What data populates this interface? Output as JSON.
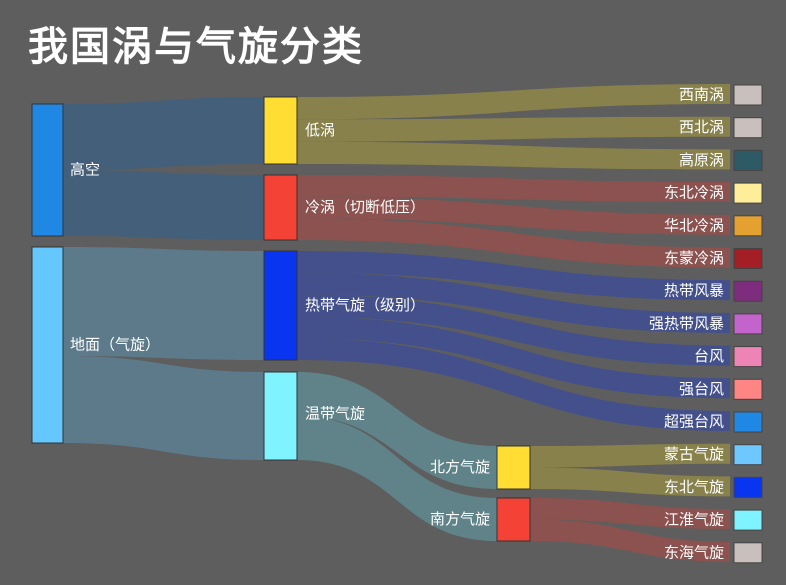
{
  "title": "我国涡与气旋分类",
  "colors": {
    "background": "#5e5e5e",
    "node_level0": "#1f88e5",
    "node_level0b": "#64c8ff",
    "flow_gaokong": "#3f5f7f",
    "flow_dimian": "#5d7f93",
    "flow_diwo": "#8f8748",
    "flow_lengwo": "#93504c",
    "flow_redai": "#3e4d93",
    "flow_wendai": "#5f8a8f"
  },
  "nodes": {
    "gaokong": {
      "label": "高空",
      "color": "#1f88e5"
    },
    "dimian": {
      "label": "地面（气旋）",
      "color": "#64c8ff"
    },
    "diwo": {
      "label": "低涡",
      "color": "#ffdd33"
    },
    "lengwo": {
      "label": "冷涡（切断低压）",
      "color": "#f44336"
    },
    "redai": {
      "label": "热带气旋（级别）",
      "color": "#0a35f0"
    },
    "wendai": {
      "label": "温带气旋",
      "color": "#7ff3ff"
    },
    "beifang": {
      "label": "北方气旋",
      "color": "#ffdd33"
    },
    "nanfang": {
      "label": "南方气旋",
      "color": "#f44336"
    }
  },
  "leaves": [
    {
      "label": "西南涡",
      "color": "#c9bfbd"
    },
    {
      "label": "西北涡",
      "color": "#c9bfbd"
    },
    {
      "label": "高原涡",
      "color": "#2e5a66"
    },
    {
      "label": "东北冷涡",
      "color": "#ffee99"
    },
    {
      "label": "华北冷涡",
      "color": "#e5a130"
    },
    {
      "label": "东蒙冷涡",
      "color": "#a41e26"
    },
    {
      "label": "热带风暴",
      "color": "#7d2c7e"
    },
    {
      "label": "强热带风暴",
      "color": "#c264cc"
    },
    {
      "label": "台风",
      "color": "#ee84b6"
    },
    {
      "label": "强台风",
      "color": "#ff8585"
    },
    {
      "label": "超强台风",
      "color": "#1f88e5"
    },
    {
      "label": "蒙古气旋",
      "color": "#6ec8ff"
    },
    {
      "label": "东北气旋",
      "color": "#0a35f0"
    },
    {
      "label": "江淮气旋",
      "color": "#7ff3ff"
    },
    {
      "label": "东海气旋",
      "color": "#c9bfbd"
    }
  ]
}
